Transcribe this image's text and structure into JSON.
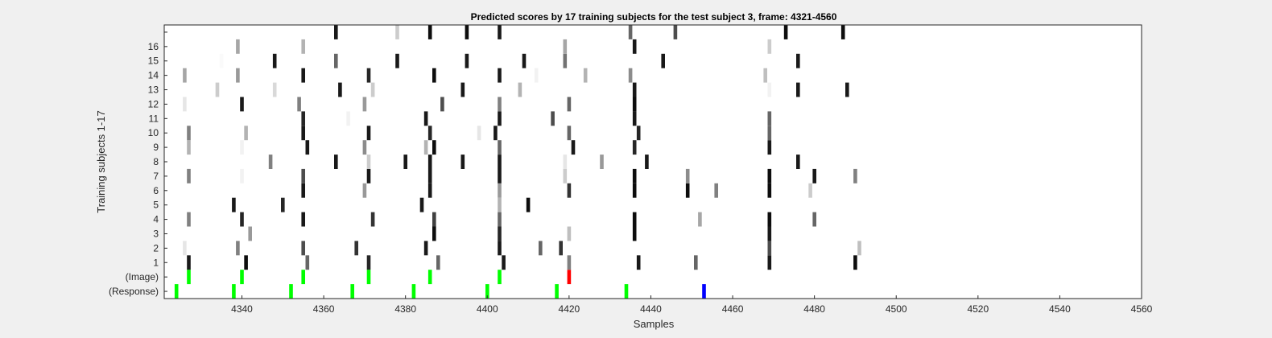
{
  "chart_data": {
    "type": "heatmap",
    "title": "Predicted scores by 17 training subjects for the test subject 3, frame: 4321-4560",
    "xlabel": "Samples",
    "ylabel": "Training subjects 1-17",
    "xlim": [
      4321,
      4560
    ],
    "x_ticks": [
      4340,
      4360,
      4380,
      4400,
      4420,
      4440,
      4460,
      4480,
      4500,
      4520,
      4540,
      4560
    ],
    "row_labels": [
      "(Response)",
      "(Image)",
      "1",
      "2",
      "3",
      "4",
      "5",
      "6",
      "7",
      "8",
      "9",
      "10",
      "11",
      "12",
      "13",
      "14",
      "15",
      "16",
      ""
    ],
    "grid": false,
    "colors": {
      "green": "#00ff00",
      "red": "#ff0000",
      "blue": "#0000ff",
      "background": "#ffffff",
      "figure": "#f0f0f0"
    },
    "rows": [
      {
        "label": "(Response)",
        "marks": [
          [
            4324,
            "green"
          ],
          [
            4338,
            "green"
          ],
          [
            4352,
            "green"
          ],
          [
            4367,
            "green"
          ],
          [
            4382,
            "green"
          ],
          [
            4400,
            "green"
          ],
          [
            4417,
            "green"
          ],
          [
            4434,
            "green"
          ],
          [
            4453,
            "blue"
          ]
        ]
      },
      {
        "label": "(Image)",
        "marks": [
          [
            4327,
            "green"
          ],
          [
            4340,
            "green"
          ],
          [
            4355,
            "green"
          ],
          [
            4371,
            "green"
          ],
          [
            4386,
            "green"
          ],
          [
            4403,
            "green"
          ],
          [
            4420,
            "red"
          ]
        ]
      },
      {
        "label": "1",
        "marks": [
          [
            4327,
            0.9
          ],
          [
            4341,
            0.95
          ],
          [
            4356,
            0.6
          ],
          [
            4371,
            0.85
          ],
          [
            4388,
            0.6
          ],
          [
            4404,
            0.9
          ],
          [
            4420,
            0.5
          ],
          [
            4437,
            0.9
          ],
          [
            4451,
            0.6
          ],
          [
            4469,
            0.9
          ],
          [
            4490,
            0.95
          ]
        ]
      },
      {
        "label": "2",
        "marks": [
          [
            4326,
            0.1
          ],
          [
            4339,
            0.5
          ],
          [
            4355,
            0.7
          ],
          [
            4368,
            0.8
          ],
          [
            4385,
            0.9
          ],
          [
            4403,
            0.9
          ],
          [
            4413,
            0.6
          ],
          [
            4418,
            0.8
          ],
          [
            4469,
            0.7
          ],
          [
            4491,
            0.25
          ]
        ]
      },
      {
        "label": "3",
        "marks": [
          [
            4342,
            0.4
          ],
          [
            4387,
            0.95
          ],
          [
            4403,
            0.85
          ],
          [
            4420,
            0.25
          ],
          [
            4436,
            0.95
          ],
          [
            4469,
            0.9
          ]
        ]
      },
      {
        "label": "4",
        "marks": [
          [
            4327,
            0.5
          ],
          [
            4340,
            0.85
          ],
          [
            4355,
            0.9
          ],
          [
            4372,
            0.8
          ],
          [
            4387,
            0.75
          ],
          [
            4403,
            0.6
          ],
          [
            4436,
            0.95
          ],
          [
            4452,
            0.35
          ],
          [
            4480,
            0.6
          ],
          [
            4469,
            0.95
          ]
        ]
      },
      {
        "label": "5",
        "marks": [
          [
            4338,
            0.9
          ],
          [
            4350,
            0.85
          ],
          [
            4384,
            0.9
          ],
          [
            4410,
            0.95
          ],
          [
            4403,
            0.3
          ]
        ]
      },
      {
        "label": "6",
        "marks": [
          [
            4355,
            0.9
          ],
          [
            4370,
            0.4
          ],
          [
            4386,
            0.9
          ],
          [
            4403,
            0.4
          ],
          [
            4420,
            0.8
          ],
          [
            4436,
            0.95
          ],
          [
            4449,
            0.95
          ],
          [
            4456,
            0.5
          ],
          [
            4469,
            0.95
          ],
          [
            4479,
            0.2
          ]
        ]
      },
      {
        "label": "7",
        "marks": [
          [
            4327,
            0.5
          ],
          [
            4340,
            0.05
          ],
          [
            4355,
            0.7
          ],
          [
            4371,
            0.9
          ],
          [
            4386,
            0.9
          ],
          [
            4403,
            0.9
          ],
          [
            4419,
            0.2
          ],
          [
            4436,
            0.95
          ],
          [
            4449,
            0.45
          ],
          [
            4469,
            0.95
          ],
          [
            4480,
            0.9
          ],
          [
            4490,
            0.5
          ]
        ]
      },
      {
        "label": "8",
        "marks": [
          [
            4347,
            0.5
          ],
          [
            4363,
            0.9
          ],
          [
            4371,
            0.2
          ],
          [
            4380,
            0.9
          ],
          [
            4386,
            0.9
          ],
          [
            4394,
            0.9
          ],
          [
            4403,
            0.9
          ],
          [
            4419,
            0.1
          ],
          [
            4428,
            0.4
          ],
          [
            4439,
            0.9
          ],
          [
            4476,
            0.9
          ]
        ]
      },
      {
        "label": "9",
        "marks": [
          [
            4327,
            0.3
          ],
          [
            4340,
            0.05
          ],
          [
            4356,
            0.9
          ],
          [
            4370,
            0.45
          ],
          [
            4385,
            0.3
          ],
          [
            4387,
            0.95
          ],
          [
            4403,
            0.6
          ],
          [
            4421,
            0.9
          ],
          [
            4436,
            0.85
          ],
          [
            4469,
            0.9
          ]
        ]
      },
      {
        "label": "10",
        "marks": [
          [
            4327,
            0.5
          ],
          [
            4341,
            0.3
          ],
          [
            4355,
            0.9
          ],
          [
            4371,
            0.9
          ],
          [
            4386,
            0.85
          ],
          [
            4398,
            0.1
          ],
          [
            4402,
            0.9
          ],
          [
            4420,
            0.6
          ],
          [
            4437,
            0.85
          ],
          [
            4469,
            0.6
          ]
        ]
      },
      {
        "label": "11",
        "marks": [
          [
            4355,
            0.85
          ],
          [
            4366,
            0.05
          ],
          [
            4385,
            0.9
          ],
          [
            4403,
            0.9
          ],
          [
            4416,
            0.7
          ],
          [
            4436,
            0.9
          ],
          [
            4469,
            0.6
          ]
        ]
      },
      {
        "label": "12",
        "marks": [
          [
            4326,
            0.1
          ],
          [
            4340,
            0.9
          ],
          [
            4354,
            0.5
          ],
          [
            4370,
            0.4
          ],
          [
            4389,
            0.7
          ],
          [
            4403,
            0.5
          ],
          [
            4420,
            0.6
          ],
          [
            4436,
            0.95
          ]
        ]
      },
      {
        "label": "13",
        "marks": [
          [
            4334,
            0.2
          ],
          [
            4348,
            0.15
          ],
          [
            4364,
            0.9
          ],
          [
            4372,
            0.2
          ],
          [
            4394,
            0.9
          ],
          [
            4408,
            0.3
          ],
          [
            4436,
            0.9
          ],
          [
            4469,
            0.05
          ],
          [
            4476,
            0.9
          ],
          [
            4488,
            0.9
          ]
        ]
      },
      {
        "label": "14",
        "marks": [
          [
            4326,
            0.35
          ],
          [
            4339,
            0.4
          ],
          [
            4355,
            0.9
          ],
          [
            4371,
            0.85
          ],
          [
            4387,
            0.95
          ],
          [
            4403,
            0.9
          ],
          [
            4412,
            0.05
          ],
          [
            4424,
            0.3
          ],
          [
            4435,
            0.45
          ],
          [
            4468,
            0.25
          ]
        ]
      },
      {
        "label": "15",
        "marks": [
          [
            4335,
            0.02
          ],
          [
            4348,
            0.9
          ],
          [
            4363,
            0.6
          ],
          [
            4378,
            0.9
          ],
          [
            4395,
            0.9
          ],
          [
            4409,
            0.9
          ],
          [
            4419,
            0.55
          ],
          [
            4443,
            0.9
          ],
          [
            4476,
            0.9
          ]
        ]
      },
      {
        "label": "16",
        "marks": [
          [
            4339,
            0.35
          ],
          [
            4355,
            0.3
          ],
          [
            4419,
            0.35
          ],
          [
            4436,
            0.9
          ],
          [
            4469,
            0.2
          ]
        ]
      },
      {
        "label": "",
        "marks": [
          [
            4363,
            0.9
          ],
          [
            4378,
            0.2
          ],
          [
            4386,
            0.95
          ],
          [
            4395,
            0.95
          ],
          [
            4403,
            0.9
          ],
          [
            4435,
            0.6
          ],
          [
            4446,
            0.7
          ],
          [
            4473,
            0.95
          ],
          [
            4487,
            0.95
          ]
        ]
      }
    ]
  }
}
